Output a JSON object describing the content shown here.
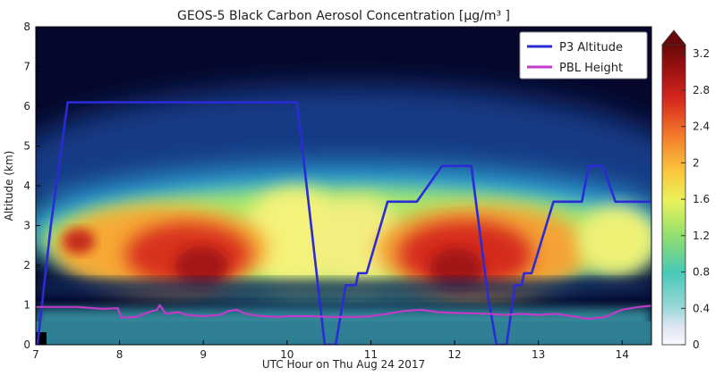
{
  "chart_data": {
    "type": "heatmap",
    "title": "GEOS-5 Black Carbon Aerosol Concentration [µg/m³ ]",
    "xlabel": "UTC Hour on Thu Aug 24 2017",
    "ylabel": "Altitude (km)",
    "xlim": [
      7.0,
      14.35
    ],
    "ylim": [
      0,
      8
    ],
    "x_ticks": [
      "7",
      "8",
      "9",
      "10",
      "11",
      "12",
      "13",
      "14"
    ],
    "y_ticks": [
      "0",
      "1",
      "2",
      "3",
      "4",
      "5",
      "6",
      "7",
      "8"
    ],
    "colorbar": {
      "range": [
        0,
        3.3
      ],
      "ticks": [
        "0",
        "0.4",
        "0.8",
        "1.2",
        "1.6",
        "2",
        "2.4",
        "2.8",
        "3.2"
      ],
      "colormap": "jet"
    },
    "legend": {
      "placement": "top-right"
    },
    "series": [
      {
        "name": "P3 Altitude",
        "color": "#2b2bd6",
        "points": [
          [
            7.02,
            0.0
          ],
          [
            7.18,
            3.0
          ],
          [
            7.38,
            6.1
          ],
          [
            10.12,
            6.1
          ],
          [
            10.45,
            0.0
          ],
          [
            10.58,
            0.0
          ],
          [
            10.7,
            1.5
          ],
          [
            10.82,
            1.5
          ],
          [
            10.85,
            1.8
          ],
          [
            10.95,
            1.8
          ],
          [
            11.2,
            3.6
          ],
          [
            11.55,
            3.6
          ],
          [
            11.85,
            4.5
          ],
          [
            12.2,
            4.5
          ],
          [
            12.4,
            1.2
          ],
          [
            12.5,
            0.0
          ],
          [
            12.62,
            0.0
          ],
          [
            12.72,
            1.5
          ],
          [
            12.8,
            1.5
          ],
          [
            12.83,
            1.8
          ],
          [
            12.92,
            1.8
          ],
          [
            13.18,
            3.6
          ],
          [
            13.52,
            3.6
          ],
          [
            13.6,
            4.5
          ],
          [
            13.77,
            4.5
          ],
          [
            13.92,
            3.6
          ],
          [
            14.35,
            3.6
          ]
        ]
      },
      {
        "name": "PBL Height",
        "color": "#c03bc8",
        "points": [
          [
            7.0,
            0.95
          ],
          [
            7.5,
            0.95
          ],
          [
            7.8,
            0.9
          ],
          [
            7.98,
            0.92
          ],
          [
            8.02,
            0.68
          ],
          [
            8.2,
            0.7
          ],
          [
            8.35,
            0.82
          ],
          [
            8.45,
            0.88
          ],
          [
            8.48,
            1.0
          ],
          [
            8.55,
            0.78
          ],
          [
            8.7,
            0.82
          ],
          [
            8.8,
            0.75
          ],
          [
            9.0,
            0.72
          ],
          [
            9.2,
            0.75
          ],
          [
            9.3,
            0.85
          ],
          [
            9.4,
            0.88
          ],
          [
            9.5,
            0.78
          ],
          [
            9.7,
            0.72
          ],
          [
            9.9,
            0.7
          ],
          [
            10.0,
            0.72
          ],
          [
            10.3,
            0.72
          ],
          [
            10.5,
            0.7
          ],
          [
            10.8,
            0.7
          ],
          [
            11.0,
            0.72
          ],
          [
            11.2,
            0.78
          ],
          [
            11.4,
            0.85
          ],
          [
            11.6,
            0.88
          ],
          [
            11.8,
            0.82
          ],
          [
            12.0,
            0.8
          ],
          [
            12.4,
            0.78
          ],
          [
            12.6,
            0.75
          ],
          [
            12.8,
            0.78
          ],
          [
            13.0,
            0.75
          ],
          [
            13.2,
            0.78
          ],
          [
            13.4,
            0.72
          ],
          [
            13.6,
            0.65
          ],
          [
            13.8,
            0.7
          ],
          [
            14.0,
            0.88
          ],
          [
            14.2,
            0.95
          ],
          [
            14.35,
            0.98
          ]
        ]
      }
    ]
  }
}
